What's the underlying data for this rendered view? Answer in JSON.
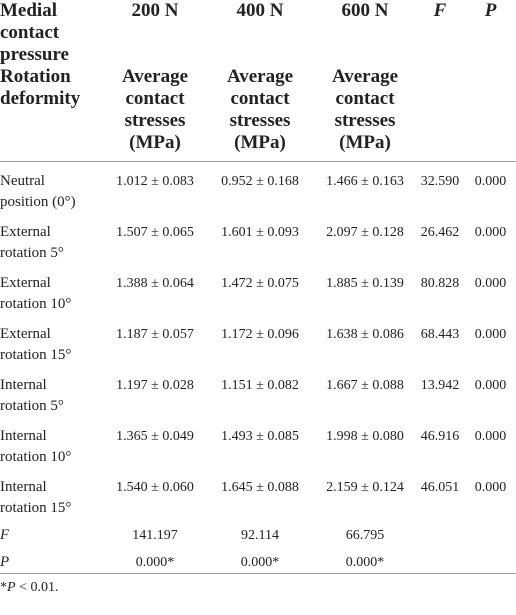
{
  "table": {
    "corner_top": "Medial contact pressure",
    "corner_bottom": "Rotation deformity",
    "columns": [
      "200 N",
      "400 N",
      "600 N",
      "F",
      "P"
    ],
    "subheaders": [
      "Average contact stresses (MPa)",
      "Average contact stresses (MPa)",
      "Average contact stresses (MPa)"
    ],
    "rows": [
      {
        "label": "Neutral position (0°)",
        "values": [
          "1.012 ± 0.083",
          "0.952 ± 0.168",
          "1.466 ± 0.163",
          "32.590",
          "0.000"
        ]
      },
      {
        "label": "External rotation 5°",
        "values": [
          "1.507 ± 0.065",
          "1.601 ± 0.093",
          "2.097 ± 0.128",
          "26.462",
          "0.000"
        ]
      },
      {
        "label": "External rotation 10°",
        "values": [
          "1.388 ± 0.064",
          "1.472 ± 0.075",
          "1.885 ± 0.139",
          "80.828",
          "0.000"
        ]
      },
      {
        "label": "External rotation 15°",
        "values": [
          "1.187 ± 0.057",
          "1.172 ± 0.096",
          "1.638 ± 0.086",
          "68.443",
          "0.000"
        ]
      },
      {
        "label": "Internal rotation 5°",
        "values": [
          "1.197 ± 0.028",
          "1.151 ± 0.082",
          "1.667 ± 0.088",
          "13.942",
          "0.000"
        ]
      },
      {
        "label": "Internal rotation 10°",
        "values": [
          "1.365 ± 0.049",
          "1.493 ± 0.085",
          "1.998 ± 0.080",
          "46.916",
          "0.000"
        ]
      },
      {
        "label": "Internal rotation 15°",
        "values": [
          "1.540 ± 0.060",
          "1.645 ± 0.088",
          "2.159 ± 0.124",
          "46.051",
          "0.000"
        ]
      }
    ],
    "stat_rows": [
      {
        "label": "F",
        "values": [
          "141.197",
          "92.114",
          "66.795"
        ]
      },
      {
        "label": "P",
        "values": [
          "0.000*",
          "0.000*",
          "0.000*"
        ]
      }
    ]
  },
  "footnote": {
    "prefix": "*",
    "symbol": "P",
    "text": " < 0.01."
  }
}
